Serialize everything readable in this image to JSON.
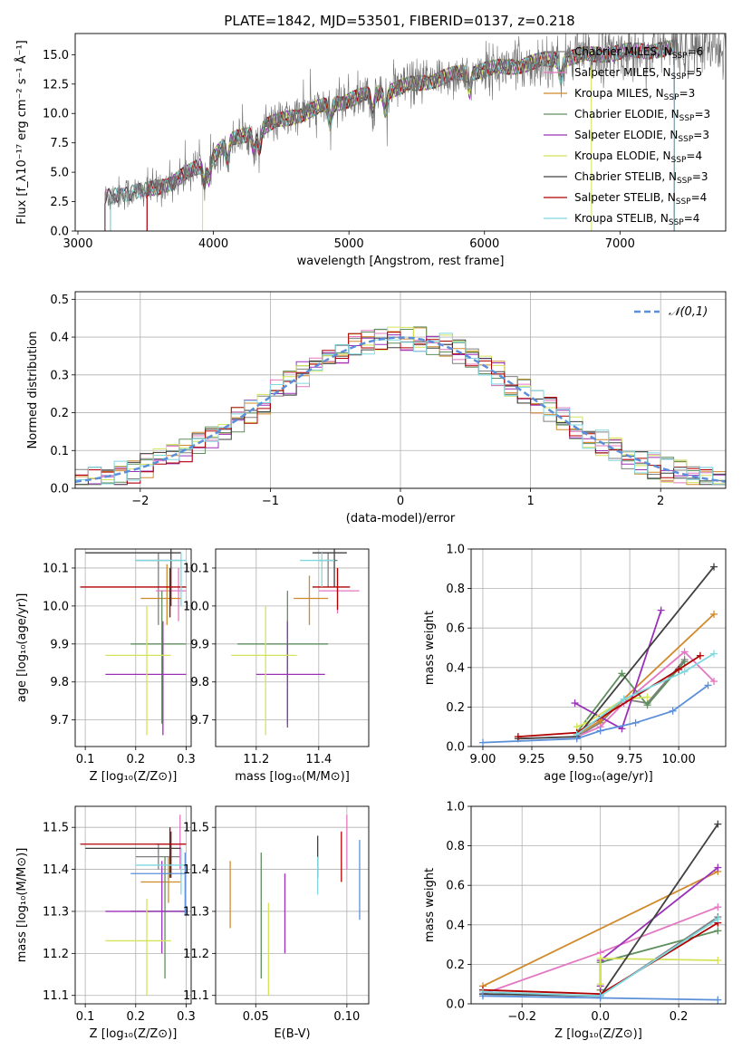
{
  "figure_title": "PLATE=1842, MJD=53501, FIBERID=0137, z=0.218",
  "colors": [
    "#808080",
    "#e377c2",
    "#d08a2c",
    "#5f8f5f",
    "#9b30b8",
    "#d4e35a",
    "#404040",
    "#b00000",
    "#7fd8e0"
  ],
  "chart_data": [
    {
      "id": "spectrum",
      "type": "line",
      "title": "PLATE=1842, MJD=53501, FIBERID=0137, z=0.218",
      "xlabel": "wavelength [Angstrom, rest frame]",
      "ylabel": "Flux [f_λ10⁻¹⁷ erg cm⁻² s⁻¹ Å⁻¹]",
      "xlim": [
        2980,
        7780
      ],
      "ylim": [
        0,
        16.8
      ],
      "xticks": [
        "3000",
        "4000",
        "5000",
        "6000",
        "7000"
      ],
      "yticks": [
        "0.0",
        "2.5",
        "5.0",
        "7.5",
        "10.0",
        "12.5",
        "15.0"
      ],
      "legend_position": "upper right",
      "series": [
        {
          "name": "Chabrier MILES, N_SSP=6",
          "color": "#808080"
        },
        {
          "name": "Salpeter MILES, N_SSP=5",
          "color": "#e377c2"
        },
        {
          "name": "Kroupa MILES, N_SSP=3",
          "color": "#d08a2c"
        },
        {
          "name": "Chabrier ELODIE, N_SSP=3",
          "color": "#5f8f5f"
        },
        {
          "name": "Salpeter ELODIE, N_SSP=3",
          "color": "#9b30b8"
        },
        {
          "name": "Kroupa ELODIE, N_SSP=4",
          "color": "#d4e35a"
        },
        {
          "name": "Chabrier STELIB, N_SSP=3",
          "color": "#404040"
        },
        {
          "name": "Salpeter STELIB, N_SSP=4",
          "color": "#b00000"
        },
        {
          "name": "Kroupa STELIB, N_SSP=4",
          "color": "#7fd8e0"
        }
      ],
      "continuum": {
        "x": [
          3200,
          3300,
          3500,
          3700,
          3900,
          4100,
          4400,
          4700,
          5000,
          5300,
          5600,
          5900,
          6200,
          6500,
          6800,
          7100,
          7400
        ],
        "y": [
          2.8,
          3.2,
          3.4,
          4.2,
          5.5,
          7.5,
          9.0,
          10.2,
          11.2,
          12.0,
          12.8,
          13.6,
          14.0,
          14.6,
          15.0,
          15.3,
          15.5
        ]
      },
      "model_starts": [
        3200,
        3200,
        3510,
        3240,
        3510,
        3920,
        3200,
        3510,
        3240
      ],
      "model_ends": [
        7400,
        7400,
        7400,
        7400,
        7400,
        6790,
        7400,
        7400,
        7400
      ]
    },
    {
      "id": "residuals",
      "type": "histogram",
      "xlabel": "(data-model)/error",
      "ylabel": "Normed distribution",
      "xlim": [
        -2.5,
        2.5
      ],
      "ylim": [
        0,
        0.52
      ],
      "xticks": [
        "−2",
        "−1",
        "0",
        "1",
        "2"
      ],
      "yticks": [
        "0.0",
        "0.1",
        "0.2",
        "0.3",
        "0.4",
        "0.5"
      ],
      "reference_curve": {
        "name": "𝒩(0,1)",
        "color": "#5b8fd9",
        "mean": 0,
        "sd": 1
      },
      "bins": 50,
      "legend_position": "upper right"
    },
    {
      "id": "age_vs_Z",
      "type": "errorbar",
      "xlabel": "Z [log₁₀(Z/Z⊙)]",
      "ylabel": "age  [log₁₀(age/yr)]",
      "xlim": [
        0.08,
        0.31
      ],
      "ylim": [
        9.63,
        10.15
      ],
      "xticks": [
        "0.1",
        "0.2",
        "0.3"
      ],
      "yticks": [
        "9.7",
        "9.8",
        "9.9",
        "10.0",
        "10.1"
      ],
      "points": [
        {
          "x": 0.245,
          "y": 10.12,
          "xerr": [
            0.2,
            0.29
          ],
          "yerr": [
            9.95,
            10.14
          ],
          "color": "#808080"
        },
        {
          "x": 0.285,
          "y": 10.04,
          "xerr": [
            0.24,
            0.3
          ],
          "yerr": [
            9.96,
            10.1
          ],
          "color": "#e377c2"
        },
        {
          "x": 0.262,
          "y": 10.02,
          "xerr": [
            0.21,
            0.29
          ],
          "yerr": [
            9.95,
            10.11
          ],
          "color": "#d08a2c"
        },
        {
          "x": 0.252,
          "y": 9.9,
          "xerr": [
            0.19,
            0.3
          ],
          "yerr": [
            9.69,
            10.04
          ],
          "color": "#5f8f5f"
        },
        {
          "x": 0.254,
          "y": 9.82,
          "xerr": [
            0.14,
            0.3
          ],
          "yerr": [
            9.66,
            9.96
          ],
          "color": "#9b30b8"
        },
        {
          "x": 0.222,
          "y": 9.87,
          "xerr": [
            0.14,
            0.27
          ],
          "yerr": [
            9.66,
            10.0
          ],
          "color": "#d4e35a"
        },
        {
          "x": 0.27,
          "y": 10.14,
          "xerr": [
            0.1,
            0.29
          ],
          "yerr": [
            10.0,
            10.15
          ],
          "color": "#404040"
        },
        {
          "x": 0.268,
          "y": 10.05,
          "xerr": [
            0.09,
            0.3
          ],
          "yerr": [
            9.97,
            10.1
          ],
          "color": "#b00000"
        },
        {
          "x": 0.29,
          "y": 10.12,
          "xerr": [
            0.2,
            0.3
          ],
          "yerr": [
            10.0,
            10.14
          ],
          "color": "#7fd8e0"
        }
      ]
    },
    {
      "id": "age_vs_mass",
      "type": "errorbar",
      "xlabel": "mass [log₁₀(M/M⊙)]",
      "ylabel": "",
      "xlim": [
        11.07,
        11.56
      ],
      "ylim": [
        9.63,
        10.15
      ],
      "xticks": [
        "11.2",
        "11.4"
      ],
      "yticks": [
        "9.7",
        "9.8",
        "9.9",
        "10.0",
        "10.1"
      ],
      "points": [
        {
          "x": 11.43,
          "y": 10.12,
          "xerr": [
            11.4,
            11.46
          ],
          "yerr": [
            10.05,
            10.14
          ],
          "color": "#808080"
        },
        {
          "x": 11.46,
          "y": 10.04,
          "xerr": [
            11.4,
            11.53
          ],
          "yerr": [
            9.98,
            10.1
          ],
          "color": "#e377c2"
        },
        {
          "x": 11.37,
          "y": 10.02,
          "xerr": [
            11.32,
            11.43
          ],
          "yerr": [
            9.95,
            10.08
          ],
          "color": "#d08a2c"
        },
        {
          "x": 11.3,
          "y": 9.9,
          "xerr": [
            11.14,
            11.43
          ],
          "yerr": [
            9.69,
            10.04
          ],
          "color": "#5f8f5f"
        },
        {
          "x": 11.3,
          "y": 9.82,
          "xerr": [
            11.2,
            11.42
          ],
          "yerr": [
            9.68,
            9.96
          ],
          "color": "#9b30b8"
        },
        {
          "x": 11.23,
          "y": 9.87,
          "xerr": [
            11.12,
            11.33
          ],
          "yerr": [
            9.66,
            10.0
          ],
          "color": "#d4e35a"
        },
        {
          "x": 11.45,
          "y": 10.14,
          "xerr": [
            11.38,
            11.49
          ],
          "yerr": [
            10.05,
            10.15
          ],
          "color": "#404040"
        },
        {
          "x": 11.46,
          "y": 10.05,
          "xerr": [
            11.38,
            11.5
          ],
          "yerr": [
            9.99,
            10.1
          ],
          "color": "#b00000"
        },
        {
          "x": 11.41,
          "y": 10.12,
          "xerr": [
            11.34,
            11.45
          ],
          "yerr": [
            10.05,
            10.14
          ],
          "color": "#7fd8e0"
        }
      ]
    },
    {
      "id": "mass_weight_vs_age",
      "type": "line",
      "xlabel": "age  [log₁₀(age/yr)]",
      "ylabel": "mass weight",
      "xlim": [
        8.94,
        10.24
      ],
      "ylim": [
        0,
        1.0
      ],
      "xticks": [
        "9.00",
        "9.25",
        "9.50",
        "9.75",
        "10.00"
      ],
      "yticks": [
        "0.0",
        "0.2",
        "0.4",
        "0.6",
        "0.8",
        "1.0"
      ],
      "series": [
        {
          "color": "#808080",
          "x": [
            9.48,
            9.6,
            9.72,
            9.84,
            10.03
          ],
          "y": [
            0.05,
            0.12,
            0.24,
            0.22,
            0.44
          ]
        },
        {
          "color": "#e377c2",
          "x": [
            9.48,
            9.6,
            9.72,
            10.03,
            10.18
          ],
          "y": [
            0.05,
            0.1,
            0.22,
            0.48,
            0.33
          ]
        },
        {
          "color": "#d08a2c",
          "x": [
            9.48,
            9.6,
            10.18
          ],
          "y": [
            0.06,
            0.13,
            0.67
          ]
        },
        {
          "color": "#5f8f5f",
          "x": [
            9.48,
            9.71,
            9.84,
            10.03
          ],
          "y": [
            0.07,
            0.37,
            0.21,
            0.43
          ]
        },
        {
          "color": "#9b30b8",
          "x": [
            9.47,
            9.71,
            9.91
          ],
          "y": [
            0.22,
            0.09,
            0.69
          ]
        },
        {
          "color": "#d4e35a",
          "x": [
            9.48,
            9.53,
            9.72,
            9.84
          ],
          "y": [
            0.1,
            0.12,
            0.24,
            0.25
          ]
        },
        {
          "color": "#404040",
          "x": [
            9.18,
            9.48,
            10.18
          ],
          "y": [
            0.04,
            0.05,
            0.91
          ]
        },
        {
          "color": "#b00000",
          "x": [
            9.18,
            9.48,
            10.0,
            10.11
          ],
          "y": [
            0.05,
            0.07,
            0.39,
            0.46
          ]
        },
        {
          "color": "#7fd8e0",
          "x": [
            9.48,
            9.72,
            10.03,
            10.18
          ],
          "y": [
            0.06,
            0.24,
            0.38,
            0.47
          ]
        },
        {
          "color": "#5b8fd9",
          "x": [
            9.0,
            9.48,
            9.6,
            9.78,
            9.97,
            10.15
          ],
          "y": [
            0.02,
            0.04,
            0.08,
            0.12,
            0.18,
            0.31
          ]
        }
      ]
    },
    {
      "id": "mass_vs_Z",
      "type": "errorbar",
      "xlabel": "Z [log₁₀(Z/Z⊙)]",
      "ylabel": "mass [log₁₀(M/M⊙)]",
      "xlim": [
        0.08,
        0.31
      ],
      "ylim": [
        11.08,
        11.55
      ],
      "xticks": [
        "0.1",
        "0.2",
        "0.3"
      ],
      "yticks": [
        "11.1",
        "11.2",
        "11.3",
        "11.4",
        "11.5"
      ],
      "points": [
        {
          "x": 0.245,
          "y": 11.43,
          "xerr": [
            0.2,
            0.29
          ],
          "yerr": [
            11.4,
            11.46
          ],
          "color": "#808080"
        },
        {
          "x": 0.288,
          "y": 11.46,
          "xerr": [
            0.24,
            0.3
          ],
          "yerr": [
            11.4,
            11.53
          ],
          "color": "#e377c2"
        },
        {
          "x": 0.265,
          "y": 11.37,
          "xerr": [
            0.21,
            0.29
          ],
          "yerr": [
            11.32,
            11.43
          ],
          "color": "#d08a2c"
        },
        {
          "x": 0.258,
          "y": 11.3,
          "xerr": [
            0.19,
            0.3
          ],
          "yerr": [
            11.14,
            11.43
          ],
          "color": "#5f8f5f"
        },
        {
          "x": 0.252,
          "y": 11.3,
          "xerr": [
            0.14,
            0.3
          ],
          "yerr": [
            11.2,
            11.42
          ],
          "color": "#9b30b8"
        },
        {
          "x": 0.222,
          "y": 11.23,
          "xerr": [
            0.14,
            0.27
          ],
          "yerr": [
            11.1,
            11.33
          ],
          "color": "#d4e35a"
        },
        {
          "x": 0.27,
          "y": 11.45,
          "xerr": [
            0.1,
            0.29
          ],
          "yerr": [
            11.38,
            11.49
          ],
          "color": "#404040"
        },
        {
          "x": 0.268,
          "y": 11.46,
          "xerr": [
            0.09,
            0.3
          ],
          "yerr": [
            11.38,
            11.5
          ],
          "color": "#b00000"
        },
        {
          "x": 0.29,
          "y": 11.41,
          "xerr": [
            0.2,
            0.3
          ],
          "yerr": [
            11.34,
            11.45
          ],
          "color": "#7fd8e0"
        },
        {
          "x": 0.298,
          "y": 11.39,
          "xerr": [
            0.19,
            0.3
          ],
          "yerr": [
            11.29,
            11.44
          ],
          "color": "#5b8fd9"
        }
      ]
    },
    {
      "id": "mass_vs_ebv",
      "type": "errorbar",
      "xlabel": "E(B-V)",
      "ylabel": "",
      "xlim": [
        0.028,
        0.112
      ],
      "ylim": [
        11.08,
        11.55
      ],
      "xticks": [
        "0.05",
        "0.10"
      ],
      "yticks": [
        "11.1",
        "11.2",
        "11.3",
        "11.4",
        "11.5"
      ],
      "points": [
        {
          "x": 0.1,
          "y": 11.46,
          "yerr": [
            11.4,
            11.53
          ],
          "color": "#e377c2"
        },
        {
          "x": 0.036,
          "y": 11.34,
          "yerr": [
            11.26,
            11.42
          ],
          "color": "#d08a2c"
        },
        {
          "x": 0.053,
          "y": 11.3,
          "yerr": [
            11.14,
            11.44
          ],
          "color": "#5f8f5f"
        },
        {
          "x": 0.066,
          "y": 11.3,
          "yerr": [
            11.2,
            11.39
          ],
          "color": "#9b30b8"
        },
        {
          "x": 0.057,
          "y": 11.21,
          "yerr": [
            11.1,
            11.32
          ],
          "color": "#d4e35a"
        },
        {
          "x": 0.084,
          "y": 11.43,
          "yerr": [
            11.38,
            11.48
          ],
          "color": "#404040"
        },
        {
          "x": 0.097,
          "y": 11.43,
          "yerr": [
            11.37,
            11.49
          ],
          "color": "#b00000"
        },
        {
          "x": 0.084,
          "y": 11.38,
          "yerr": [
            11.34,
            11.43
          ],
          "color": "#7fd8e0"
        },
        {
          "x": 0.107,
          "y": 11.37,
          "yerr": [
            11.28,
            11.47
          ],
          "color": "#5b8fd9"
        }
      ]
    },
    {
      "id": "mass_weight_vs_Z",
      "type": "line",
      "xlabel": "Z [log₁₀(Z/Z⊙)]",
      "ylabel": "mass weight",
      "xlim": [
        -0.33,
        0.32
      ],
      "ylim": [
        0,
        1.0
      ],
      "xticks": [
        "−0.2",
        "0.0",
        "0.2"
      ],
      "yticks": [
        "0.0",
        "0.2",
        "0.4",
        "0.6",
        "0.8",
        "1.0"
      ],
      "series": [
        {
          "color": "#808080",
          "x": [
            -0.3,
            0.0,
            0.3
          ],
          "y": [
            0.05,
            0.04,
            0.44
          ]
        },
        {
          "color": "#e377c2",
          "x": [
            -0.3,
            0.0,
            0.3
          ],
          "y": [
            0.05,
            0.26,
            0.49
          ]
        },
        {
          "color": "#d08a2c",
          "x": [
            -0.3,
            0.3
          ],
          "y": [
            0.09,
            0.67
          ]
        },
        {
          "color": "#5f8f5f",
          "x": [
            0.0,
            0.0,
            0.3
          ],
          "y": [
            0.07,
            0.21,
            0.37
          ]
        },
        {
          "color": "#9b30b8",
          "x": [
            0.0,
            0.0,
            0.3
          ],
          "y": [
            0.09,
            0.22,
            0.69
          ]
        },
        {
          "color": "#d4e35a",
          "x": [
            0.0,
            0.0,
            0.3
          ],
          "y": [
            0.1,
            0.23,
            0.22
          ]
        },
        {
          "color": "#404040",
          "x": [
            -0.3,
            0.0,
            0.3
          ],
          "y": [
            0.05,
            0.04,
            0.91
          ]
        },
        {
          "color": "#b00000",
          "x": [
            -0.3,
            0.0,
            0.3
          ],
          "y": [
            0.07,
            0.05,
            0.41
          ]
        },
        {
          "color": "#7fd8e0",
          "x": [
            -0.3,
            0.0,
            0.3
          ],
          "y": [
            0.06,
            0.04,
            0.43
          ]
        },
        {
          "color": "#5b8fd9",
          "x": [
            -0.3,
            0.0,
            0.3
          ],
          "y": [
            0.04,
            0.03,
            0.02
          ]
        }
      ]
    }
  ]
}
